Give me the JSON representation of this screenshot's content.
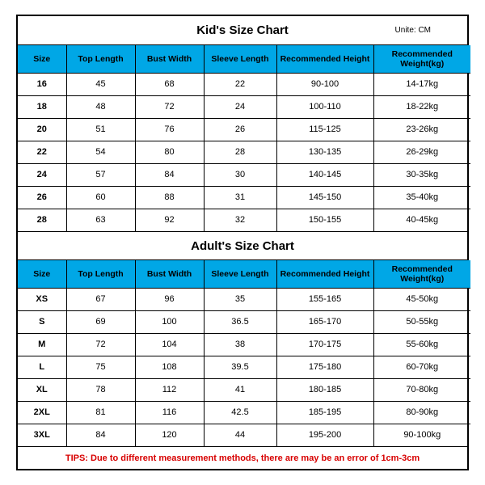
{
  "kid": {
    "title": "Kid's Size Chart",
    "unit": "Unite: CM",
    "columns": [
      "Size",
      "Top Length",
      "Bust Width",
      "Sleeve Length",
      "Recommended Height",
      "Recommended Weight(kg)"
    ],
    "rows": [
      [
        "16",
        "45",
        "68",
        "22",
        "90-100",
        "14-17kg"
      ],
      [
        "18",
        "48",
        "72",
        "24",
        "100-110",
        "18-22kg"
      ],
      [
        "20",
        "51",
        "76",
        "26",
        "115-125",
        "23-26kg"
      ],
      [
        "22",
        "54",
        "80",
        "28",
        "130-135",
        "26-29kg"
      ],
      [
        "24",
        "57",
        "84",
        "30",
        "140-145",
        "30-35kg"
      ],
      [
        "26",
        "60",
        "88",
        "31",
        "145-150",
        "35-40kg"
      ],
      [
        "28",
        "63",
        "92",
        "32",
        "150-155",
        "40-45kg"
      ]
    ]
  },
  "adult": {
    "title": "Adult's Size Chart",
    "columns": [
      "Size",
      "Top Length",
      "Bust Width",
      "Sleeve Length",
      "Recommended Height",
      "Recommended Weight(kg)"
    ],
    "rows": [
      [
        "XS",
        "67",
        "96",
        "35",
        "155-165",
        "45-50kg"
      ],
      [
        "S",
        "69",
        "100",
        "36.5",
        "165-170",
        "50-55kg"
      ],
      [
        "M",
        "72",
        "104",
        "38",
        "170-175",
        "55-60kg"
      ],
      [
        "L",
        "75",
        "108",
        "39.5",
        "175-180",
        "60-70kg"
      ],
      [
        "XL",
        "78",
        "112",
        "41",
        "180-185",
        "70-80kg"
      ],
      [
        "2XL",
        "81",
        "116",
        "42.5",
        "185-195",
        "80-90kg"
      ],
      [
        "3XL",
        "84",
        "120",
        "44",
        "195-200",
        "90-100kg"
      ]
    ]
  },
  "tips": "TIPS: Due to different measurement methods, there are may be an error of 1cm-3cm",
  "colors": {
    "header_bg": "#00a7e6",
    "border": "#000000",
    "tips_text": "#d80000",
    "background": "#ffffff"
  }
}
